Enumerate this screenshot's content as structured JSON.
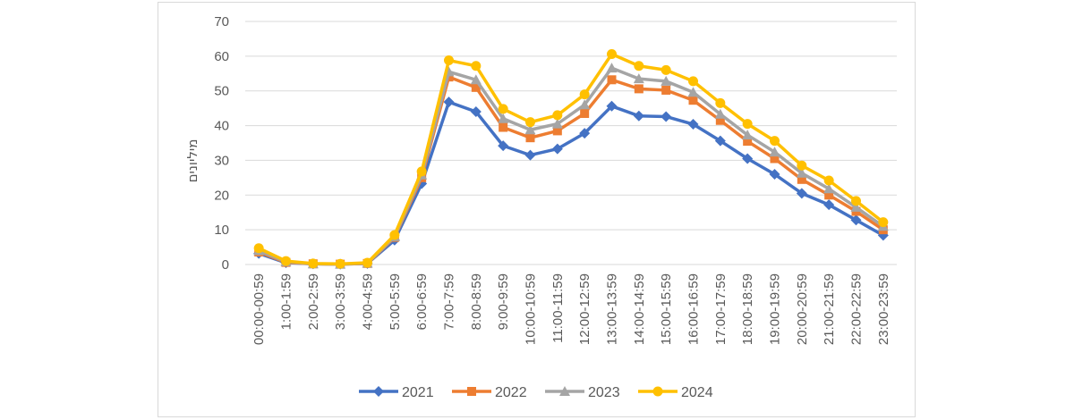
{
  "chart_data": {
    "type": "line",
    "title": "",
    "xlabel": "",
    "ylabel": "מיליונים",
    "ylim": [
      0,
      70
    ],
    "yticks": [
      0,
      10,
      20,
      30,
      40,
      50,
      60,
      70
    ],
    "grid": true,
    "legend_position": "bottom",
    "categories": [
      "00:00-00:59",
      "1:00-1:59",
      "2:00-2:59",
      "3:00-3:59",
      "4:00-4:59",
      "5:00-5:59",
      "6:00-6:59",
      "7:00-7:59",
      "8:00-8:59",
      "9:00-9:59",
      "10:00-10:59",
      "11:00-11:59",
      "12:00-12:59",
      "13:00-13:59",
      "14:00-14:59",
      "15:00-15:59",
      "16:00-16:59",
      "17:00-17:59",
      "18:00-18:59",
      "19:00-19:59",
      "20:00-20:59",
      "21:00-21:59",
      "22:00-22:59",
      "23:00-23:59"
    ],
    "series": [
      {
        "name": "2021",
        "color": "#4472C4",
        "marker": "diamond",
        "values": [
          3.2,
          0.5,
          0.2,
          0.1,
          0.3,
          7.0,
          23.3,
          46.8,
          44.0,
          34.2,
          31.5,
          33.3,
          37.8,
          45.6,
          42.8,
          42.6,
          40.4,
          35.6,
          30.5,
          26.0,
          20.5,
          17.2,
          12.8,
          8.4
        ]
      },
      {
        "name": "2022",
        "color": "#ED7D31",
        "marker": "square",
        "values": [
          3.6,
          0.6,
          0.2,
          0.1,
          0.3,
          7.8,
          25.0,
          54.0,
          51.0,
          39.5,
          36.5,
          38.5,
          43.5,
          53.2,
          50.6,
          50.2,
          47.3,
          41.5,
          35.5,
          30.5,
          24.5,
          20.0,
          15.3,
          10.0
        ]
      },
      {
        "name": "2023",
        "color": "#A5A5A5",
        "marker": "triangle",
        "values": [
          4.0,
          0.8,
          0.2,
          0.1,
          0.4,
          8.0,
          25.8,
          55.5,
          53.2,
          42.0,
          38.8,
          40.5,
          46.0,
          56.6,
          53.5,
          52.8,
          49.6,
          43.3,
          37.3,
          32.4,
          26.3,
          21.8,
          16.5,
          11.0
        ]
      },
      {
        "name": "2024",
        "color": "#FFC000",
        "marker": "circle",
        "values": [
          4.7,
          1.0,
          0.3,
          0.2,
          0.5,
          8.5,
          26.8,
          58.8,
          57.2,
          44.8,
          41.0,
          43.0,
          49.0,
          60.6,
          57.2,
          56.0,
          52.8,
          46.5,
          40.5,
          35.6,
          28.5,
          24.2,
          18.3,
          12.2
        ]
      }
    ]
  }
}
